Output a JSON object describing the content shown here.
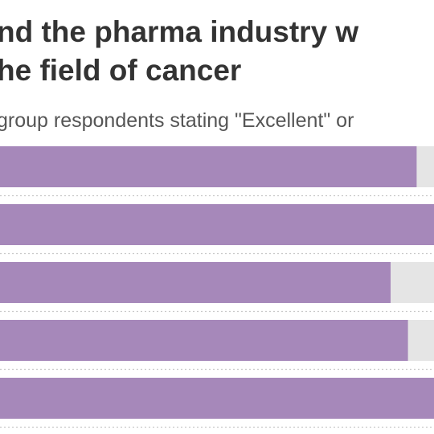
{
  "chart_data": {
    "type": "bar",
    "orientation": "horizontal",
    "title": [
      "nd the pharma industry w",
      "he field of cancer"
    ],
    "subtitle": "group respondents stating \"Excellent\" or",
    "categories": [
      null,
      null,
      null,
      null,
      null
    ],
    "values": [
      96,
      100,
      90,
      94,
      100
    ],
    "color": "#a688ba",
    "track_color": "#e5e5e5",
    "xlim": [
      0,
      100
    ]
  }
}
